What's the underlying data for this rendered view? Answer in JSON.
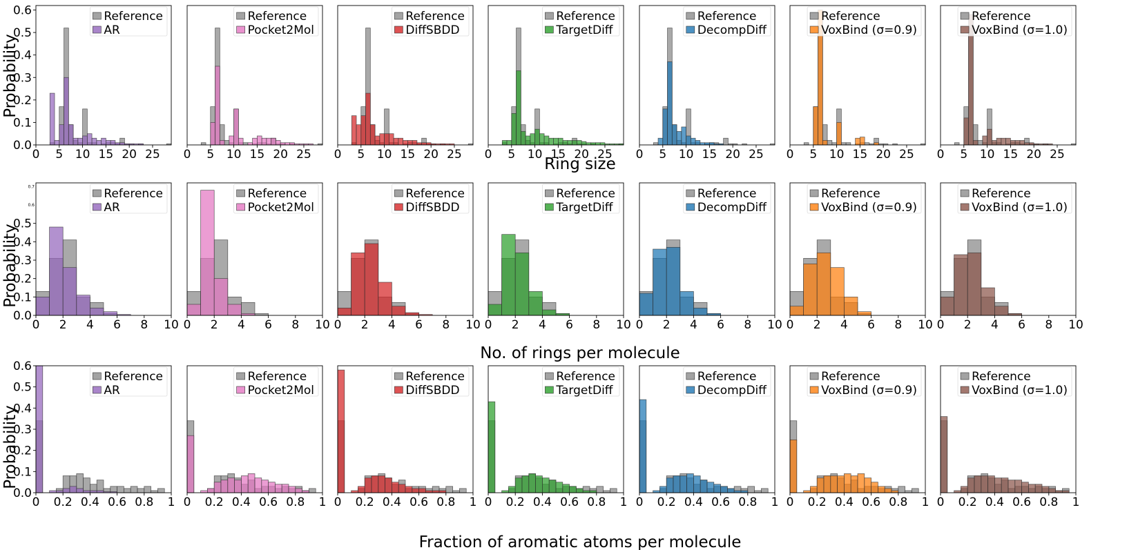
{
  "figure": {
    "ylabel": "Probability",
    "row_xlabels": [
      "Ring size",
      "No. of rings per molecule",
      "Fraction of aromatic atoms per molecule"
    ],
    "reference_label": "Reference",
    "reference_color": "#8c8c8c"
  },
  "chart_data": [
    {
      "type": "bar",
      "row": "ring_size",
      "xlabel": "Ring size",
      "ylabel": "Probability",
      "xlim": [
        0,
        29
      ],
      "ylim": [
        0,
        0.62
      ],
      "xticks": [
        0,
        5,
        10,
        15,
        20,
        25
      ],
      "yticks": [
        0.0,
        0.1,
        0.2,
        0.3,
        0.4,
        0.5,
        0.6
      ],
      "ytick_labels": [
        "0.0",
        "0.1",
        "0.2",
        "0.3",
        "0.4",
        "0.5",
        "0.6"
      ],
      "bin_width": 1,
      "bins": [
        3,
        4,
        5,
        6,
        7,
        8,
        9,
        10,
        11,
        12,
        13,
        14,
        15,
        16,
        17,
        18,
        19,
        20,
        21,
        22,
        23,
        24,
        25,
        26,
        27,
        28
      ],
      "reference": [
        0.01,
        0.0,
        0.17,
        0.52,
        0.09,
        0.02,
        0.01,
        0.16,
        0.01,
        0.01,
        0.0,
        0.005,
        0.01,
        0.01,
        0.005,
        0.03,
        0.005,
        0.005,
        0.0,
        0.005,
        0.0,
        0.0,
        0.0,
        0.0,
        0.0,
        0.005
      ],
      "series": [
        {
          "name": "AR",
          "color": "#9467bd",
          "values": [
            0.23,
            0.02,
            0.09,
            0.3,
            0.09,
            0.03,
            0.03,
            0.04,
            0.05,
            0.03,
            0.02,
            0.03,
            0.02,
            0.02,
            0.01,
            0.01,
            0.005,
            0.005,
            0.005,
            0.005,
            0.0,
            0.0,
            0.0,
            0.0,
            0.0,
            0.0
          ]
        },
        {
          "name": "Pocket2Mol",
          "color": "#e377c2",
          "values": [
            0.0,
            0.0,
            0.1,
            0.35,
            0.02,
            0.0,
            0.04,
            0.16,
            0.03,
            0.0,
            0.01,
            0.03,
            0.04,
            0.03,
            0.03,
            0.03,
            0.02,
            0.01,
            0.01,
            0.01,
            0.005,
            0.005,
            0.005,
            0.005,
            0.0,
            0.0
          ]
        },
        {
          "name": "DiffSBDD",
          "color": "#d62728",
          "values": [
            0.13,
            0.09,
            0.13,
            0.23,
            0.09,
            0.04,
            0.05,
            0.05,
            0.05,
            0.03,
            0.03,
            0.02,
            0.02,
            0.02,
            0.01,
            0.01,
            0.01,
            0.005,
            0.005,
            0.005,
            0.005,
            0.005,
            0.0,
            0.0,
            0.0,
            0.0
          ]
        },
        {
          "name": "TargetDiff",
          "color": "#2ca02c",
          "values": [
            0.02,
            0.02,
            0.14,
            0.33,
            0.06,
            0.04,
            0.05,
            0.07,
            0.05,
            0.04,
            0.03,
            0.03,
            0.03,
            0.02,
            0.02,
            0.02,
            0.02,
            0.015,
            0.01,
            0.01,
            0.01,
            0.01,
            0.005,
            0.005,
            0.005,
            0.005
          ]
        },
        {
          "name": "DecompDiff",
          "color": "#1f77b4",
          "values": [
            0.0,
            0.03,
            0.16,
            0.37,
            0.09,
            0.06,
            0.08,
            0.04,
            0.03,
            0.02,
            0.01,
            0.01,
            0.01,
            0.005,
            0.005,
            0.0,
            0.0,
            0.0,
            0.0,
            0.0,
            0.0,
            0.0,
            0.0,
            0.0,
            0.0,
            0.0
          ]
        },
        {
          "name": "VoxBind (σ=0.9)",
          "color": "#ff7f0e",
          "values": [
            0.0,
            0.0,
            0.17,
            0.6,
            0.02,
            0.0,
            0.0,
            0.1,
            0.0,
            0.0,
            0.0,
            0.03,
            0.035,
            0.0,
            0.0,
            0.01,
            0.0,
            0.0,
            0.0,
            0.0,
            0.0,
            0.0,
            0.0,
            0.0,
            0.0,
            0.0
          ]
        },
        {
          "name": "VoxBind (σ=1.0)",
          "color": "#8c564b",
          "values": [
            0.0,
            0.0,
            0.12,
            0.58,
            0.02,
            0.0,
            0.04,
            0.07,
            0.02,
            0.03,
            0.03,
            0.03,
            0.02,
            0.02,
            0.02,
            0.01,
            0.01,
            0.005,
            0.005,
            0.005,
            0.005,
            0.0,
            0.0,
            0.0,
            0.0,
            0.0
          ]
        }
      ]
    },
    {
      "type": "bar",
      "row": "num_rings",
      "xlabel": "No. of rings per molecule",
      "ylabel": "Probability",
      "xlim": [
        0,
        10
      ],
      "ylim": [
        0,
        0.72
      ],
      "xticks": [
        0,
        2,
        4,
        6,
        8,
        10
      ],
      "yticks": [
        0.0,
        0.1,
        0.2,
        0.3,
        0.4,
        0.5
      ],
      "ytick_labels": [
        "0.0",
        "0.1",
        "0.2",
        "0.3",
        "0.4",
        "0.5"
      ],
      "extra_yticks": [
        0.6,
        0.7
      ],
      "extra_ytick_labels": [
        "0.6",
        "0.7"
      ],
      "bin_width": 1,
      "bins": [
        0,
        1,
        2,
        3,
        4,
        5,
        6,
        7,
        8,
        9
      ],
      "reference": [
        0.13,
        0.31,
        0.41,
        0.1,
        0.07,
        0.01,
        0.0,
        0.0,
        0.0,
        0.0
      ],
      "series": [
        {
          "name": "AR",
          "color": "#9467bd",
          "values": [
            0.1,
            0.48,
            0.26,
            0.11,
            0.04,
            0.02,
            0.005,
            0.0,
            0.0,
            0.0
          ]
        },
        {
          "name": "Pocket2Mol",
          "color": "#e377c2",
          "values": [
            0.06,
            0.68,
            0.2,
            0.06,
            0.01,
            0.0,
            0.0,
            0.0,
            0.0,
            0.0
          ]
        },
        {
          "name": "DiffSBDD",
          "color": "#d62728",
          "values": [
            0.04,
            0.34,
            0.39,
            0.18,
            0.05,
            0.015,
            0.005,
            0.0,
            0.0,
            0.0
          ]
        },
        {
          "name": "TargetDiff",
          "color": "#2ca02c",
          "values": [
            0.06,
            0.44,
            0.34,
            0.13,
            0.03,
            0.01,
            0.0,
            0.0,
            0.0,
            0.0
          ]
        },
        {
          "name": "DecompDiff",
          "color": "#1f77b4",
          "values": [
            0.12,
            0.36,
            0.37,
            0.13,
            0.04,
            0.01,
            0.0,
            0.0,
            0.0,
            0.0
          ]
        },
        {
          "name": "VoxBind (σ=0.9)",
          "color": "#ff7f0e",
          "values": [
            0.05,
            0.28,
            0.34,
            0.26,
            0.1,
            0.02,
            0.0,
            0.0,
            0.0,
            0.0
          ]
        },
        {
          "name": "VoxBind (σ=1.0)",
          "color": "#8c564b",
          "values": [
            0.1,
            0.33,
            0.34,
            0.15,
            0.05,
            0.01,
            0.0,
            0.0,
            0.0,
            0.0
          ]
        }
      ]
    },
    {
      "type": "bar",
      "row": "aromatic_fraction",
      "xlabel": "Fraction of aromatic atoms per molecule",
      "ylabel": "Probability",
      "xlim": [
        0,
        1
      ],
      "ylim": [
        0,
        0.6
      ],
      "xticks": [
        0.0,
        0.2,
        0.4,
        0.6,
        0.8,
        1.0
      ],
      "yticks": [
        0.0,
        0.1,
        0.2,
        0.3,
        0.4,
        0.5,
        0.6
      ],
      "ytick_labels": [
        "0.0",
        "0.1",
        "0.2",
        "0.3",
        "0.4",
        "0.5",
        "0.6"
      ],
      "bin_width": 0.05,
      "bins": [
        0.0,
        0.05,
        0.1,
        0.15,
        0.2,
        0.25,
        0.3,
        0.35,
        0.4,
        0.45,
        0.5,
        0.55,
        0.6,
        0.65,
        0.7,
        0.75,
        0.8,
        0.85,
        0.9,
        0.95
      ],
      "reference": [
        0.34,
        0.0,
        0.0,
        0.02,
        0.08,
        0.08,
        0.09,
        0.07,
        0.04,
        0.06,
        0.02,
        0.03,
        0.03,
        0.02,
        0.03,
        0.02,
        0.03,
        0.01,
        0.02,
        0.0
      ],
      "series": [
        {
          "name": "AR",
          "color": "#9467bd",
          "values": [
            0.6,
            0.0,
            0.01,
            0.01,
            0.02,
            0.03,
            0.02,
            0.01,
            0.01,
            0.01,
            0.005,
            0.005,
            0.0,
            0.0,
            0.0,
            0.0,
            0.0,
            0.0,
            0.0,
            0.0
          ]
        },
        {
          "name": "Pocket2Mol",
          "color": "#e377c2",
          "values": [
            0.27,
            0.0,
            0.01,
            0.02,
            0.05,
            0.06,
            0.07,
            0.06,
            0.08,
            0.09,
            0.07,
            0.06,
            0.05,
            0.04,
            0.04,
            0.03,
            0.02,
            0.01,
            0.0,
            0.0
          ]
        },
        {
          "name": "DiffSBDD",
          "color": "#d62728",
          "values": [
            0.58,
            0.0,
            0.01,
            0.03,
            0.07,
            0.08,
            0.08,
            0.07,
            0.05,
            0.04,
            0.03,
            0.02,
            0.02,
            0.01,
            0.01,
            0.01,
            0.0,
            0.0,
            0.0,
            0.0
          ]
        },
        {
          "name": "TargetDiff",
          "color": "#2ca02c",
          "values": [
            0.43,
            0.0,
            0.01,
            0.03,
            0.07,
            0.08,
            0.09,
            0.08,
            0.07,
            0.06,
            0.05,
            0.04,
            0.03,
            0.02,
            0.01,
            0.01,
            0.0,
            0.0,
            0.0,
            0.0
          ]
        },
        {
          "name": "DecompDiff",
          "color": "#1f77b4",
          "values": [
            0.44,
            0.0,
            0.01,
            0.03,
            0.07,
            0.08,
            0.08,
            0.09,
            0.08,
            0.06,
            0.05,
            0.04,
            0.03,
            0.02,
            0.01,
            0.01,
            0.0,
            0.0,
            0.0,
            0.0
          ]
        },
        {
          "name": "VoxBind (σ=0.9)",
          "color": "#ff7f0e",
          "values": [
            0.25,
            0.0,
            0.01,
            0.03,
            0.07,
            0.08,
            0.08,
            0.08,
            0.09,
            0.08,
            0.09,
            0.07,
            0.05,
            0.03,
            0.02,
            0.01,
            0.0,
            0.0,
            0.0,
            0.0
          ]
        },
        {
          "name": "VoxBind (σ=1.0)",
          "color": "#8c564b",
          "values": [
            0.36,
            0.0,
            0.01,
            0.03,
            0.07,
            0.08,
            0.08,
            0.08,
            0.07,
            0.07,
            0.06,
            0.06,
            0.05,
            0.04,
            0.04,
            0.03,
            0.02,
            0.01,
            0.01,
            0.0
          ]
        }
      ]
    }
  ]
}
